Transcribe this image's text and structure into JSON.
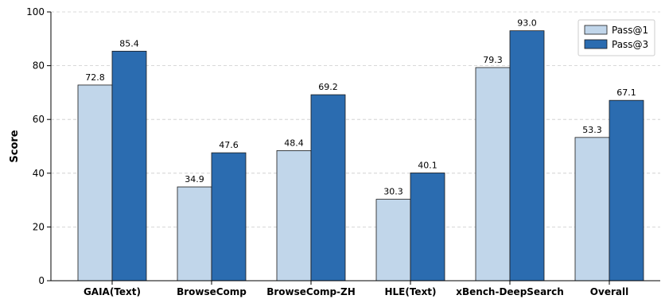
{
  "chart_data": {
    "type": "bar",
    "categories": [
      "GAIA(Text)",
      "BrowseComp",
      "BrowseComp-ZH",
      "HLE(Text)",
      "xBench-DeepSearch",
      "Overall"
    ],
    "series": [
      {
        "name": "Pass@1",
        "values": [
          72.8,
          34.9,
          48.4,
          30.3,
          79.3,
          53.3
        ],
        "color": "#c1d6ea"
      },
      {
        "name": "Pass@3",
        "values": [
          85.4,
          47.6,
          69.2,
          40.1,
          93.0,
          67.1
        ],
        "color": "#2b6cb0"
      }
    ],
    "title": "",
    "xlabel": "",
    "ylabel": "Score",
    "ylim": [
      0,
      100
    ],
    "yticks": [
      0,
      20,
      40,
      60,
      80,
      100
    ],
    "grid": true,
    "legend": "top-right"
  }
}
